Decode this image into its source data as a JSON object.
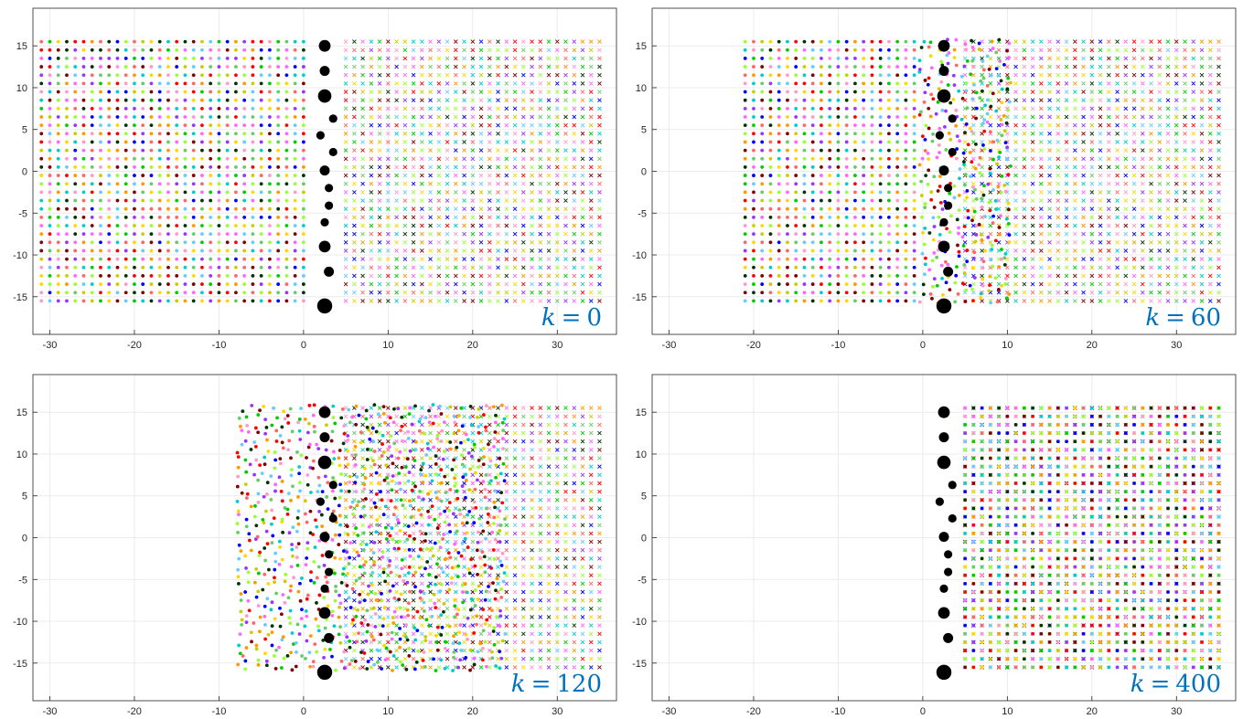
{
  "chart_data": [
    {
      "type": "scatter",
      "panel_label": "k = 0",
      "label_parts": {
        "var": "k",
        "op": "=",
        "num": "0"
      },
      "xlim": [
        -32,
        37
      ],
      "ylim": [
        -19.5,
        19.5
      ],
      "xticks": [
        "-30",
        "-20",
        "-10",
        "0",
        "10",
        "20",
        "30"
      ],
      "yticks": [
        "15",
        "10",
        "5",
        "0",
        "-5",
        "-10",
        "-15"
      ],
      "grid": true,
      "dot_region": {
        "x": [
          -31,
          0.5
        ]
      },
      "cross_region": {
        "x": [
          5,
          35.5
        ]
      },
      "perturbed_region": null,
      "grid_y": [
        -15.5,
        15.5
      ],
      "spacing": 1
    },
    {
      "type": "scatter",
      "panel_label": "k = 60",
      "label_parts": {
        "var": "k",
        "op": "=",
        "num": "60"
      },
      "xlim": [
        -32,
        37
      ],
      "ylim": [
        -19.5,
        19.5
      ],
      "xticks": [
        "-30",
        "-20",
        "-10",
        "0",
        "10",
        "20",
        "30"
      ],
      "yticks": [
        "15",
        "10",
        "5",
        "0",
        "-5",
        "-10",
        "-15"
      ],
      "grid": true,
      "dot_region": {
        "x": [
          -21,
          10.5
        ]
      },
      "cross_region": {
        "x": [
          5,
          35.5
        ]
      },
      "perturbed_region": {
        "x": [
          0,
          10.5
        ]
      },
      "grid_y": [
        -15.5,
        15.5
      ],
      "spacing": 1
    },
    {
      "type": "scatter",
      "panel_label": "k = 120",
      "label_parts": {
        "var": "k",
        "op": "=",
        "num": "120"
      },
      "xlim": [
        -32,
        37
      ],
      "ylim": [
        -19.5,
        19.5
      ],
      "xticks": [
        "-30",
        "-20",
        "-10",
        "0",
        "10",
        "20",
        "30"
      ],
      "yticks": [
        "15",
        "10",
        "5",
        "0",
        "-5",
        "-10",
        "-15"
      ],
      "grid": true,
      "dot_region": {
        "x": [
          -7.5,
          24
        ]
      },
      "cross_region": {
        "x": [
          5,
          35.5
        ]
      },
      "perturbed_region": {
        "x": [
          -7.5,
          24
        ]
      },
      "grid_y": [
        -15.5,
        15.5
      ],
      "spacing": 1
    },
    {
      "type": "scatter",
      "panel_label": "k = 400",
      "label_parts": {
        "var": "k",
        "op": "=",
        "num": "400"
      },
      "xlim": [
        -32,
        37
      ],
      "ylim": [
        -19.5,
        19.5
      ],
      "xticks": [
        "-30",
        "-20",
        "-10",
        "0",
        "10",
        "20",
        "30"
      ],
      "yticks": [
        "15",
        "10",
        "5",
        "0",
        "-5",
        "-10",
        "-15"
      ],
      "grid": true,
      "dot_region": {
        "x": [
          5,
          35.5
        ]
      },
      "cross_region": {
        "x": [
          5,
          35.5
        ]
      },
      "perturbed_region": null,
      "grid_y": [
        -15.5,
        15.5
      ],
      "spacing": 1
    }
  ],
  "obstacles": [
    {
      "x": 2.5,
      "y": 15,
      "r": 0.7
    },
    {
      "x": 2.5,
      "y": 12,
      "r": 0.6
    },
    {
      "x": 2.5,
      "y": 9,
      "r": 0.8
    },
    {
      "x": 3.5,
      "y": 6.3,
      "r": 0.5
    },
    {
      "x": 2,
      "y": 4.3,
      "r": 0.5
    },
    {
      "x": 3.5,
      "y": 2.3,
      "r": 0.5
    },
    {
      "x": 2.5,
      "y": 0.1,
      "r": 0.6
    },
    {
      "x": 3,
      "y": -2,
      "r": 0.5
    },
    {
      "x": 3,
      "y": -4.1,
      "r": 0.5
    },
    {
      "x": 2.5,
      "y": -6.1,
      "r": 0.5
    },
    {
      "x": 2.5,
      "y": -9,
      "r": 0.7
    },
    {
      "x": 3,
      "y": -12,
      "r": 0.6
    },
    {
      "x": 2.5,
      "y": -16.1,
      "r": 0.9
    }
  ],
  "palette": [
    "#ff0000",
    "#00cc00",
    "#0000ff",
    "#ffd700",
    "#ff66ff",
    "#00cccc",
    "#800000",
    "#66cc66",
    "#ff9900",
    "#9933ff",
    "#66ccff",
    "#003300",
    "#ff6666",
    "#99ff33",
    "#cccc00",
    "#ff99cc"
  ],
  "colors": {
    "obstacle": "#000000",
    "label": "#0072BD",
    "grid": "#ebebeb",
    "axes": "#262626"
  }
}
